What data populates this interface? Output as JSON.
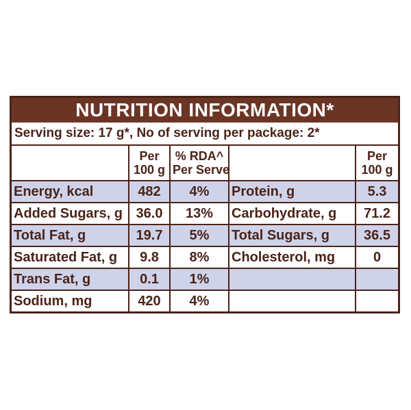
{
  "title": "NUTRITION INFORMATION*",
  "serving": "Serving size: 17 g*, No of serving per package: 2*",
  "headers": {
    "per100_line1": "Per",
    "per100_line2": "100 g",
    "rda_line1": "% RDA^",
    "rda_line2": "Per Serve",
    "right_per100_line1": "Per",
    "right_per100_line2": "100 g"
  },
  "rows": [
    {
      "name": "Energy, kcal",
      "per100": "482",
      "rda": "4%",
      "rname": "Protein, g",
      "rval": "5.3"
    },
    {
      "name": "Added Sugars, g",
      "per100": "36.0",
      "rda": "13%",
      "rname": "Carbohydrate, g",
      "rval": "71.2"
    },
    {
      "name": "Total Fat, g",
      "per100": "19.7",
      "rda": "5%",
      "rname": "Total Sugars, g",
      "rval": "36.5"
    },
    {
      "name": "Saturated Fat, g",
      "per100": "9.8",
      "rda": "8%",
      "rname": "Cholesterol, mg",
      "rval": "0"
    },
    {
      "name": "Trans Fat, g",
      "per100": "0.1",
      "rda": "1%",
      "rname": "",
      "rval": ""
    },
    {
      "name": "Sodium, mg",
      "per100": "420",
      "rda": "4%",
      "rname": "",
      "rval": ""
    }
  ],
  "colors": {
    "header_bg": "#6b3526",
    "border": "#4a2318",
    "shade": "#cfd3ea"
  }
}
